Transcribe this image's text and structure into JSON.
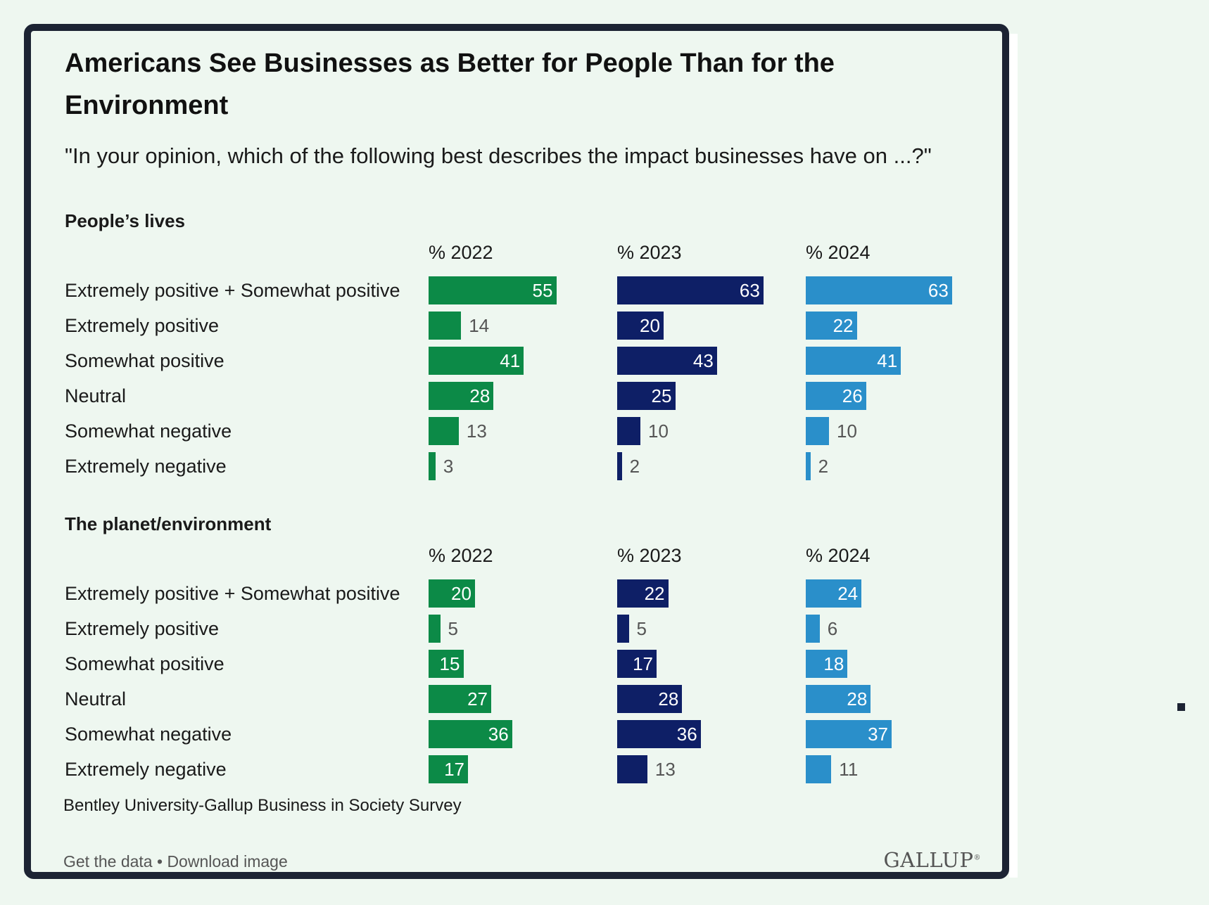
{
  "title": "Americans See Businesses as Better for People Than for the Environment",
  "subtitle": "\"In your opinion, which of the following best describes the impact businesses have on ...?\"",
  "source": "Bentley University-Gallup Business in Society Survey",
  "footer": {
    "get_data": "Get the data",
    "separator": " • ",
    "download": "Download image"
  },
  "logo": {
    "text": "GALLUP",
    "mark": "®"
  },
  "colors": {
    "2022": "#0c8a47",
    "2023": "#0e1f66",
    "2024": "#2a8fca",
    "frame": "#1c2333",
    "background": "#eef7f0"
  },
  "chart_data": {
    "type": "bar",
    "orientation": "horizontal",
    "value_unit": "%",
    "years": [
      "% 2022",
      "% 2023",
      "% 2024"
    ],
    "categories": [
      "Extremely positive + Somewhat positive",
      "Extremely positive",
      "Somewhat positive",
      "Neutral",
      "Somewhat negative",
      "Extremely negative"
    ],
    "panels": [
      {
        "name": "People’s lives",
        "series": [
          {
            "name": "% 2022",
            "values": [
              55,
              14,
              41,
              28,
              13,
              3
            ]
          },
          {
            "name": "% 2023",
            "values": [
              63,
              20,
              43,
              25,
              10,
              2
            ]
          },
          {
            "name": "% 2024",
            "values": [
              63,
              22,
              41,
              26,
              10,
              2
            ]
          }
        ]
      },
      {
        "name": "The planet/environment",
        "series": [
          {
            "name": "% 2022",
            "values": [
              20,
              5,
              15,
              27,
              36,
              17
            ]
          },
          {
            "name": "% 2023",
            "values": [
              22,
              5,
              17,
              28,
              36,
              13
            ]
          },
          {
            "name": "% 2024",
            "values": [
              24,
              6,
              18,
              28,
              37,
              11
            ]
          }
        ]
      }
    ]
  }
}
